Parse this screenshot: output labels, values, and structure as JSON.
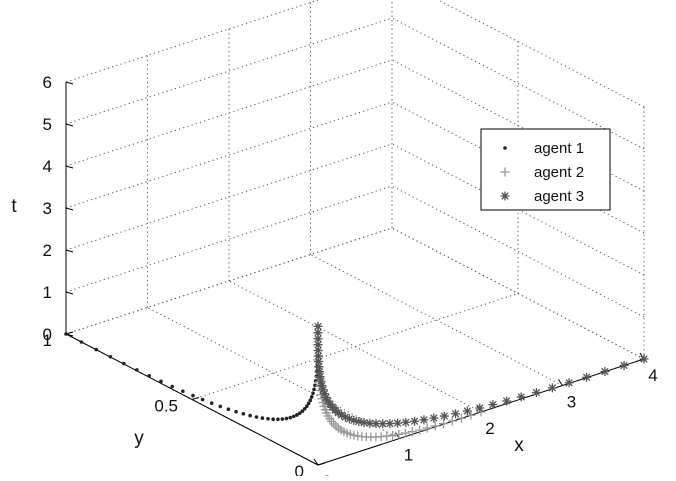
{
  "chart_data": {
    "type": "scatter",
    "projection": "3d",
    "xlabel": "x",
    "ylabel": "y",
    "zlabel": "t",
    "xlim": [
      0,
      4
    ],
    "ylim": [
      0,
      1
    ],
    "zlim": [
      0,
      6
    ],
    "x_ticks": [
      "0",
      "1",
      "2",
      "3",
      "4"
    ],
    "y_ticks": [
      "0",
      "0.5",
      "1"
    ],
    "z_ticks": [
      "0",
      "1",
      "2",
      "3",
      "4",
      "5",
      "6"
    ],
    "grid": true,
    "legend": "top-right",
    "series": [
      {
        "name": "agent 1",
        "marker": "dot",
        "color": "#222222",
        "trajectory": {
          "start": [
            0,
            1,
            0
          ],
          "end": [
            0,
            0,
            3.3
          ]
        }
      },
      {
        "name": "agent 2",
        "marker": "plus",
        "color": "#999999",
        "trajectory": {
          "start": [
            2,
            0,
            0
          ],
          "end": [
            0,
            0,
            3.3
          ]
        }
      },
      {
        "name": "agent 3",
        "marker": "asterisk",
        "color": "#555555",
        "trajectory": {
          "start": [
            4,
            0,
            0
          ],
          "end": [
            0,
            0,
            3.3
          ]
        }
      }
    ]
  }
}
